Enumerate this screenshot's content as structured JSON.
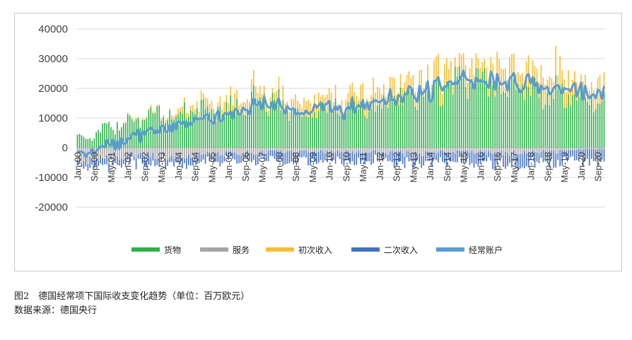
{
  "chart_data": {
    "type": "bar",
    "title": "",
    "xlabel": "",
    "ylabel": "",
    "ylim": [
      -25000,
      40000
    ],
    "yticks": [
      -20000,
      -10000,
      0,
      10000,
      20000,
      30000,
      40000
    ],
    "ytick_labels": [
      "-20000",
      "-10000",
      "0",
      "10000",
      "20000",
      "30000",
      "40000"
    ],
    "stacked": true,
    "grid": true,
    "legend_position": "bottom",
    "x_tick_labels": [
      "Jan-00",
      "Sep-00",
      "May-01",
      "Jan-02",
      "Sep-02",
      "May-03",
      "Jan-04",
      "Sep-04",
      "May-05",
      "Jan-06",
      "Sep-06",
      "May-07",
      "Jan-08",
      "Sep-08",
      "May-09",
      "Jan-10",
      "Sep-10",
      "May-11",
      "Jan-12",
      "Sep-12",
      "May-13",
      "Jan-14",
      "Sep-14",
      "May-15",
      "Jan-16",
      "Sep-16",
      "May-17",
      "Jan-18",
      "Sep-18",
      "May-19",
      "Jan-20",
      "Sep-20"
    ],
    "x_start": "Jan-00",
    "x_end": "Dec-20",
    "frequency": "monthly",
    "series": [
      {
        "name": "货物",
        "color": "#2db24a",
        "kind": "bar",
        "anchor_values": [
          [
            2000,
            3000
          ],
          [
            2001,
            5500
          ],
          [
            2002,
            10000
          ],
          [
            2003,
            10500
          ],
          [
            2004,
            12000
          ],
          [
            2005,
            12500
          ],
          [
            2006,
            13000
          ],
          [
            2007,
            16000
          ],
          [
            2008,
            15000
          ],
          [
            2009,
            11000
          ],
          [
            2010,
            13500
          ],
          [
            2011,
            13000
          ],
          [
            2012,
            15000
          ],
          [
            2013,
            16500
          ],
          [
            2014,
            18000
          ],
          [
            2015,
            21500
          ],
          [
            2016,
            22000
          ],
          [
            2017,
            21000
          ],
          [
            2018,
            19000
          ],
          [
            2019,
            18500
          ],
          [
            2020,
            16500
          ]
        ]
      },
      {
        "name": "服务",
        "color": "#a5a5a5",
        "kind": "bar",
        "anchor_values": [
          [
            2000,
            -3500
          ],
          [
            2001,
            -3500
          ],
          [
            2002,
            -3000
          ],
          [
            2003,
            -3000
          ],
          [
            2004,
            -3000
          ],
          [
            2005,
            -2500
          ],
          [
            2006,
            -2000
          ],
          [
            2007,
            -1800
          ],
          [
            2008,
            -1500
          ],
          [
            2009,
            -1500
          ],
          [
            2010,
            -1500
          ],
          [
            2011,
            -1500
          ],
          [
            2012,
            -1500
          ],
          [
            2013,
            -2000
          ],
          [
            2014,
            -2000
          ],
          [
            2015,
            -1500
          ],
          [
            2016,
            -1500
          ],
          [
            2017,
            -2000
          ],
          [
            2018,
            -1500
          ],
          [
            2019,
            -1500
          ],
          [
            2020,
            -500
          ]
        ]
      },
      {
        "name": "初次收入",
        "color": "#fbbc32",
        "kind": "bar",
        "anchor_values": [
          [
            2000,
            -500
          ],
          [
            2001,
            -500
          ],
          [
            2002,
            500
          ],
          [
            2003,
            500
          ],
          [
            2004,
            1500
          ],
          [
            2005,
            2500
          ],
          [
            2006,
            3500
          ],
          [
            2007,
            3500
          ],
          [
            2008,
            3000
          ],
          [
            2009,
            4500
          ],
          [
            2010,
            4500
          ],
          [
            2011,
            4500
          ],
          [
            2012,
            5000
          ],
          [
            2013,
            5000
          ],
          [
            2014,
            5500
          ],
          [
            2015,
            5500
          ],
          [
            2016,
            5500
          ],
          [
            2017,
            6500
          ],
          [
            2018,
            7500
          ],
          [
            2019,
            7000
          ],
          [
            2020,
            6500
          ]
        ]
      },
      {
        "name": "二次收入",
        "color": "#4472c4",
        "kind": "bar",
        "anchor_values": [
          [
            2000,
            -2500
          ],
          [
            2001,
            -2500
          ],
          [
            2002,
            -2500
          ],
          [
            2003,
            -2500
          ],
          [
            2004,
            -2500
          ],
          [
            2005,
            -2500
          ],
          [
            2006,
            -2500
          ],
          [
            2007,
            -2500
          ],
          [
            2008,
            -3000
          ],
          [
            2009,
            -3000
          ],
          [
            2010,
            -3000
          ],
          [
            2011,
            -3000
          ],
          [
            2012,
            -3000
          ],
          [
            2013,
            -3500
          ],
          [
            2014,
            -3000
          ],
          [
            2015,
            -3000
          ],
          [
            2016,
            -3500
          ],
          [
            2017,
            -4000
          ],
          [
            2018,
            -4000
          ],
          [
            2019,
            -4000
          ],
          [
            2020,
            -4000
          ]
        ]
      },
      {
        "name": "经常账户",
        "color": "#5b9bd5",
        "kind": "line",
        "anchor_values": [
          [
            2000,
            -1000
          ],
          [
            2001,
            0
          ],
          [
            2002,
            3500
          ],
          [
            2003,
            4000
          ],
          [
            2004,
            9000
          ],
          [
            2005,
            10000
          ],
          [
            2006,
            11000
          ],
          [
            2007,
            15000
          ],
          [
            2008,
            14000
          ],
          [
            2009,
            12500
          ],
          [
            2010,
            14000
          ],
          [
            2011,
            14000
          ],
          [
            2012,
            16500
          ],
          [
            2013,
            17500
          ],
          [
            2014,
            19000
          ],
          [
            2015,
            22500
          ],
          [
            2016,
            23000
          ],
          [
            2017,
            22500
          ],
          [
            2018,
            22000
          ],
          [
            2019,
            20000
          ],
          [
            2020,
            19000
          ]
        ]
      }
    ]
  },
  "caption": {
    "line1": "图2　德国经常项下国际收支变化趋势（单位：百万欧元）",
    "line2": "数据来源：德国央行"
  }
}
